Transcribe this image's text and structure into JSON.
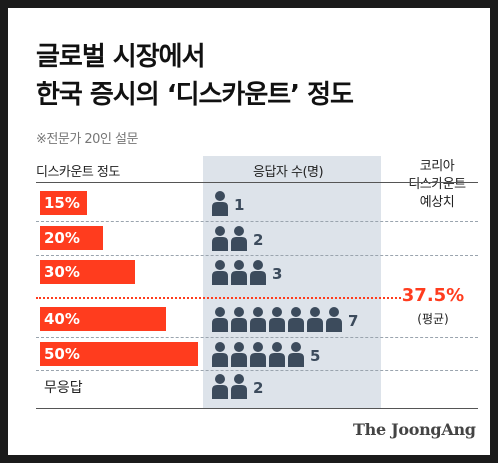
{
  "title_line1": "글로벌 시장에서",
  "title_line2": "한국 증시의 ‘디스카운트’ 정도",
  "subtitle": "※전문가 20인 설문",
  "headers": {
    "category": "디스카운트 정도",
    "people": "응답자 수(명)",
    "korea_line1": "코리아",
    "korea_line2": "디스카운트",
    "korea_line3": "예상치"
  },
  "average": {
    "value": "37.5%",
    "label": "(평균)"
  },
  "brand": "The JoongAng",
  "colors": {
    "accent": "#ff3c1e",
    "icon": "#3c4b5c",
    "shade": "#dde3ea"
  },
  "chart_data": {
    "type": "bar",
    "categories": [
      "15%",
      "20%",
      "30%",
      "40%",
      "50%",
      "무응답"
    ],
    "category_values_pct": [
      15,
      20,
      30,
      40,
      50,
      null
    ],
    "values": [
      1,
      2,
      3,
      7,
      5,
      2
    ],
    "average_pct": 37.5,
    "title": "글로벌 시장에서 한국 증시의 ‘디스카운트’ 정도",
    "subtitle": "※전문가 20인 설문",
    "xlabel": "디스카운트 정도",
    "ylabel": "응답자 수(명)"
  }
}
